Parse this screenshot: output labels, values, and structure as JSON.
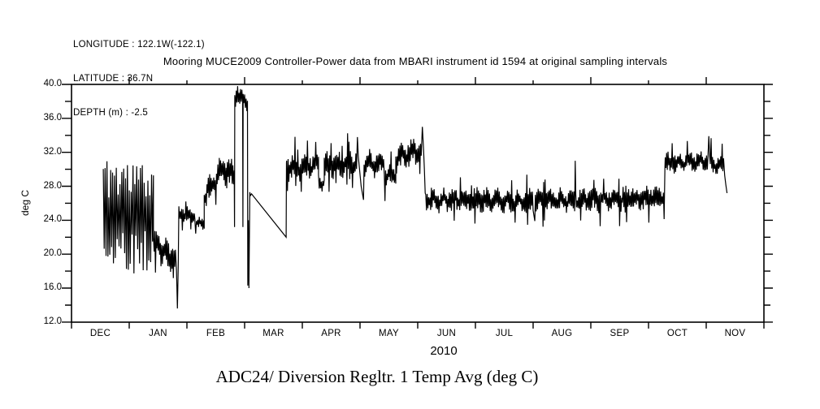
{
  "header": {
    "longitude": "LONGITUDE : 122.1W(-122.1)",
    "latitude": "LATITUDE : 36.7N",
    "depth": "DEPTH (m) : -2.5"
  },
  "footer_title": "ADC24/ Diversion Regltr. 1 Temp Avg (deg C)",
  "chart_data": {
    "type": "line",
    "title": "Mooring MUCE2009 Controller-Power data from MBARI instrument id 1594 at original sampling intervals",
    "ylabel": "deg C",
    "xlabel": "2010",
    "x_unit": "months since 2009-12-01",
    "x_categories": [
      "DEC",
      "JAN",
      "FEB",
      "MAR",
      "APR",
      "MAY",
      "JUN",
      "JUL",
      "AUG",
      "SEP",
      "OCT",
      "NOV"
    ],
    "ylim": [
      12,
      40
    ],
    "y_minor_step": 2,
    "y_major_step": 4,
    "y_tick_labels": [
      "12.0",
      "16.0",
      "20.0",
      "24.0",
      "28.0",
      "32.0",
      "36.0",
      "40.0"
    ],
    "grid": "off",
    "legend": "none",
    "line_color": "#000000",
    "background_color": "#ffffff",
    "noise_seed": 11,
    "sequence": [
      {
        "kind": "noise",
        "t0": 0.55,
        "t1": 1.42,
        "v0": 25.0,
        "v1": 24.0,
        "amp": 7.2,
        "dt": 0.016
      },
      {
        "kind": "noise",
        "t0": 1.42,
        "t1": 1.8,
        "v0": 21.5,
        "v1": 19.0,
        "amp": 1.8,
        "dt": 0.012
      },
      {
        "kind": "points",
        "pts": [
          [
            1.82,
            18.0
          ],
          [
            1.835,
            13.6
          ],
          [
            1.85,
            18.5
          ]
        ]
      },
      {
        "kind": "noise",
        "t0": 1.86,
        "t1": 2.14,
        "v0": 24.8,
        "v1": 24.6,
        "amp": 0.9,
        "dt": 0.012
      },
      {
        "kind": "noise",
        "t0": 2.14,
        "t1": 2.3,
        "v0": 23.6,
        "v1": 23.6,
        "amp": 0.7,
        "dt": 0.012
      },
      {
        "kind": "noise",
        "t0": 2.3,
        "t1": 2.56,
        "v0": 26.8,
        "v1": 29.4,
        "amp": 1.4,
        "dt": 0.012
      },
      {
        "kind": "noise",
        "t0": 2.56,
        "t1": 2.82,
        "v0": 29.8,
        "v1": 29.6,
        "amp": 1.7,
        "dt": 0.012
      },
      {
        "kind": "points",
        "pts": [
          [
            2.825,
            23.2
          ]
        ]
      },
      {
        "kind": "noise",
        "t0": 2.83,
        "t1": 2.965,
        "v0": 38.6,
        "v1": 38.3,
        "amp": 1.1,
        "dt": 0.012,
        "vmax": 39.8
      },
      {
        "kind": "points",
        "pts": [
          [
            2.97,
            23.2
          ]
        ]
      },
      {
        "kind": "noise",
        "t0": 2.975,
        "t1": 3.05,
        "v0": 38.4,
        "v1": 38.0,
        "amp": 1.0,
        "dt": 0.012,
        "vmax": 39.7
      },
      {
        "kind": "points",
        "pts": [
          [
            3.055,
            16.3
          ],
          [
            3.065,
            24.0
          ],
          [
            3.075,
            16.0
          ],
          [
            3.09,
            27.3
          ],
          [
            3.1,
            26.9
          ],
          [
            3.12,
            27.1
          ],
          [
            3.72,
            22.0
          ],
          [
            3.725,
            30.8
          ]
        ]
      },
      {
        "kind": "noise",
        "t0": 3.73,
        "t1": 4.28,
        "v0": 30.2,
        "v1": 30.4,
        "amp": 1.4,
        "dt": 0.012
      },
      {
        "kind": "noise",
        "t0": 4.28,
        "t1": 4.38,
        "v0": 28.4,
        "v1": 28.4,
        "amp": 1.0,
        "dt": 0.012
      },
      {
        "kind": "noise",
        "t0": 4.38,
        "t1": 4.94,
        "v0": 30.4,
        "v1": 30.8,
        "amp": 1.4,
        "dt": 0.012
      },
      {
        "kind": "points",
        "pts": [
          [
            4.955,
            33.8
          ],
          [
            4.97,
            31.5
          ],
          [
            5.02,
            28.0
          ],
          [
            5.06,
            26.4
          ]
        ]
      },
      {
        "kind": "noise",
        "t0": 5.07,
        "t1": 5.42,
        "v0": 30.6,
        "v1": 30.6,
        "amp": 1.4,
        "dt": 0.012
      },
      {
        "kind": "noise",
        "t0": 5.42,
        "t1": 5.62,
        "v0": 29.2,
        "v1": 29.4,
        "amp": 1.2,
        "dt": 0.012
      },
      {
        "kind": "noise",
        "t0": 5.62,
        "t1": 6.06,
        "v0": 31.2,
        "v1": 32.4,
        "amp": 1.4,
        "dt": 0.012
      },
      {
        "kind": "points",
        "pts": [
          [
            6.08,
            35.0
          ],
          [
            6.1,
            32.5
          ],
          [
            6.115,
            30.0
          ],
          [
            6.13,
            27.2
          ]
        ]
      },
      {
        "kind": "noise",
        "t0": 6.14,
        "t1": 8.0,
        "v0": 26.4,
        "v1": 26.2,
        "amp": 1.3,
        "dt": 0.012
      },
      {
        "kind": "points",
        "pts": [
          [
            8.03,
            23.9
          ]
        ]
      },
      {
        "kind": "noise",
        "t0": 8.04,
        "t1": 8.72,
        "v0": 26.3,
        "v1": 26.3,
        "amp": 1.3,
        "dt": 0.012
      },
      {
        "kind": "points",
        "pts": [
          [
            8.73,
            31.0
          ]
        ]
      },
      {
        "kind": "noise",
        "t0": 8.74,
        "t1": 10.27,
        "v0": 26.3,
        "v1": 26.7,
        "amp": 1.3,
        "dt": 0.012
      },
      {
        "kind": "points",
        "pts": [
          [
            10.285,
            30.3
          ]
        ]
      },
      {
        "kind": "noise",
        "t0": 10.29,
        "t1": 11.03,
        "v0": 30.7,
        "v1": 31.0,
        "amp": 1.1,
        "dt": 0.012
      },
      {
        "kind": "points",
        "pts": [
          [
            11.045,
            33.9
          ]
        ]
      },
      {
        "kind": "noise",
        "t0": 11.06,
        "t1": 11.3,
        "v0": 30.8,
        "v1": 30.2,
        "amp": 1.1,
        "dt": 0.012
      },
      {
        "kind": "points",
        "pts": [
          [
            11.32,
            29.3
          ],
          [
            11.34,
            28.2
          ],
          [
            11.36,
            27.2
          ]
        ]
      }
    ]
  }
}
